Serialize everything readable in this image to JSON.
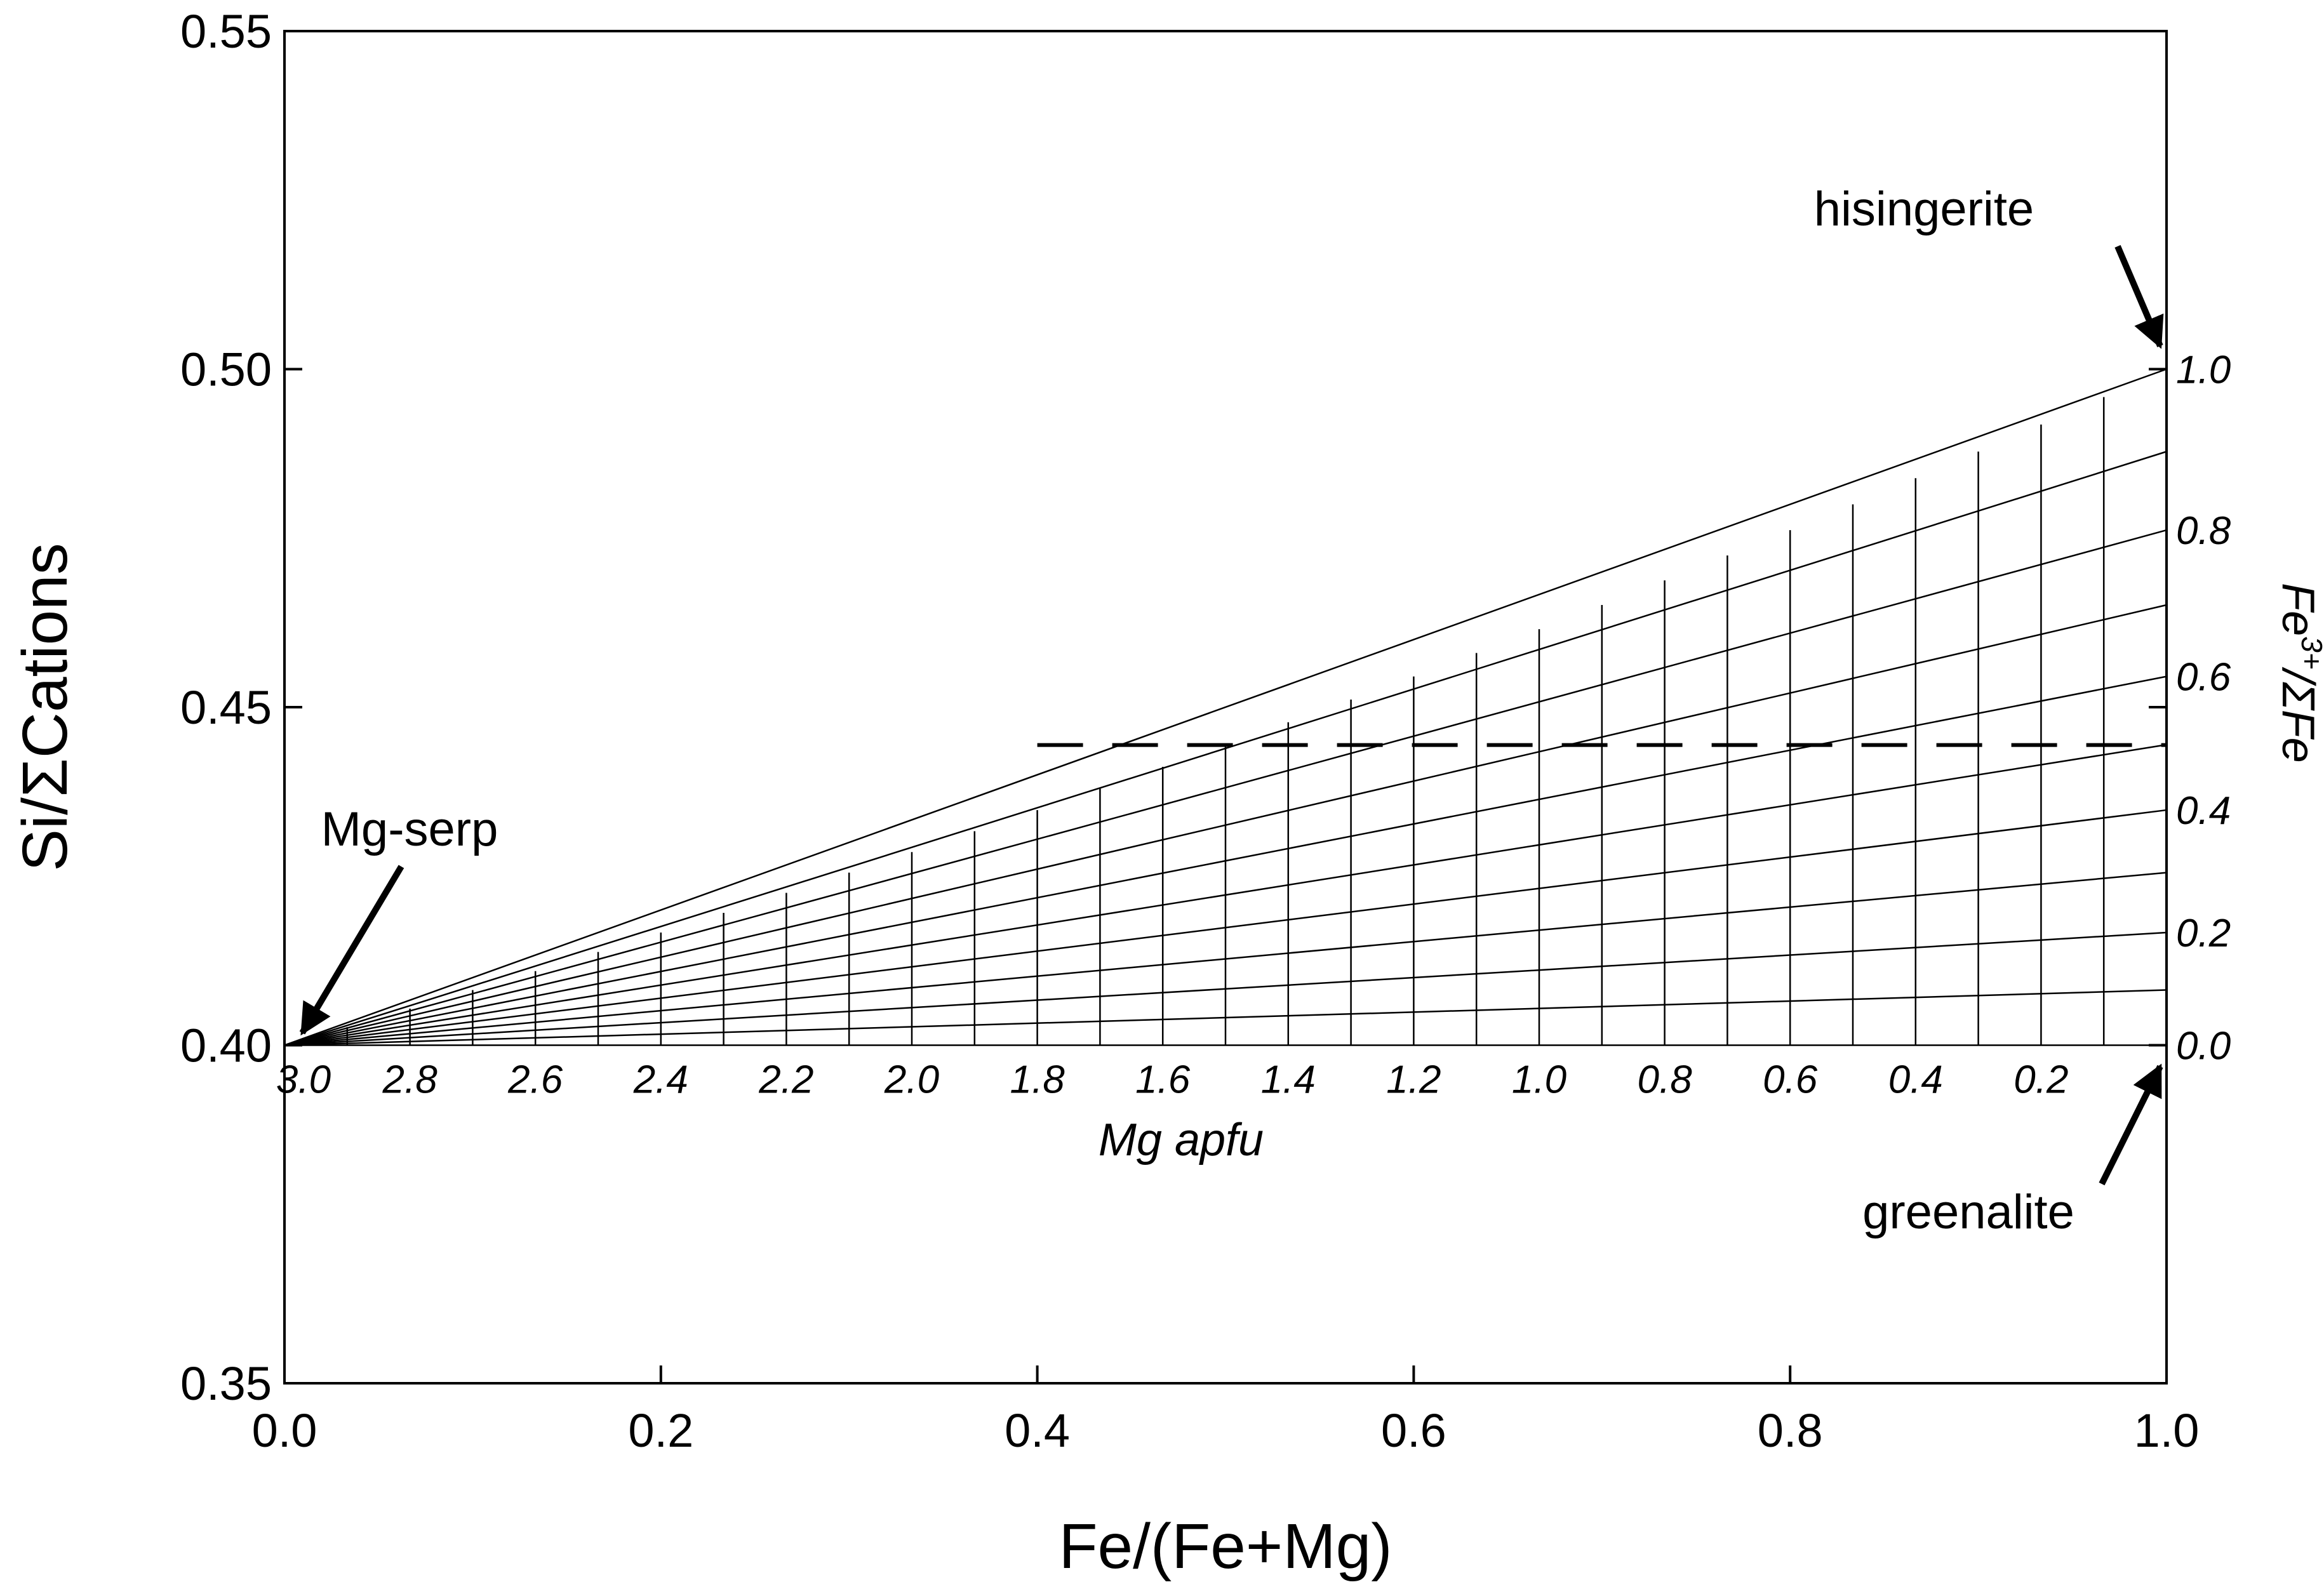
{
  "chart_data": {
    "type": "line",
    "title": "",
    "xlabel": "Fe/(Fe+Mg)",
    "ylabel": "Si/ΣCations",
    "xlim": [
      0.0,
      1.0
    ],
    "ylim": [
      0.35,
      0.55
    ],
    "x_ticks": [
      0.0,
      0.2,
      0.4,
      0.6,
      0.8,
      1.0
    ],
    "x_tick_labels": [
      "0.0",
      "0.2",
      "0.4",
      "0.6",
      "0.8",
      "1.0"
    ],
    "y_ticks": [
      0.35,
      0.4,
      0.45,
      0.5,
      0.55
    ],
    "y_tick_labels": [
      "0.35",
      "0.40",
      "0.45",
      "0.50",
      "0.55"
    ],
    "grid": false,
    "model_grid": {
      "description": "Serpentine composition grid: Si/ΣCations = 2/(5 - Fe3+ per formula unit); Fe3+/ΣFe lines and Mg apfu lines",
      "mg_apfu_total": 3.0,
      "mg_apfu_step": 0.1,
      "fe3_ratio_step": 0.1,
      "mg_apfu_labels": [
        "3.0",
        "2.8",
        "2.6",
        "2.4",
        "2.2",
        "2.0",
        "1.8",
        "1.6",
        "1.4",
        "1.2",
        "1.0",
        "0.8",
        "0.6",
        "0.4",
        "0.2"
      ],
      "mg_apfu_label_values": [
        3.0,
        2.8,
        2.6,
        2.4,
        2.2,
        2.0,
        1.8,
        1.6,
        1.4,
        1.2,
        1.0,
        0.8,
        0.6,
        0.4,
        0.2
      ],
      "mg_apfu_title": "Mg apfu",
      "fe3_labels": [
        "1.0",
        "0.8",
        "0.6",
        "0.4",
        "0.2",
        "0.0"
      ],
      "fe3_label_values": [
        1.0,
        0.8,
        0.6,
        0.4,
        0.2,
        0.0
      ],
      "fe3_title_main": "Fe",
      "fe3_title_sup": "3+",
      "fe3_title_rest": "/ΣFe"
    },
    "dashed_line": {
      "x": [
        0.4,
        1.0
      ],
      "y": [
        0.4444,
        0.4444
      ]
    },
    "annotations": [
      {
        "text": "hisingerite",
        "points_to": [
          1.0,
          0.5
        ]
      },
      {
        "text": "Mg-serp",
        "points_to": [
          0.0,
          0.4
        ]
      },
      {
        "text": "greenalite",
        "points_to": [
          1.0,
          0.4
        ]
      }
    ]
  }
}
